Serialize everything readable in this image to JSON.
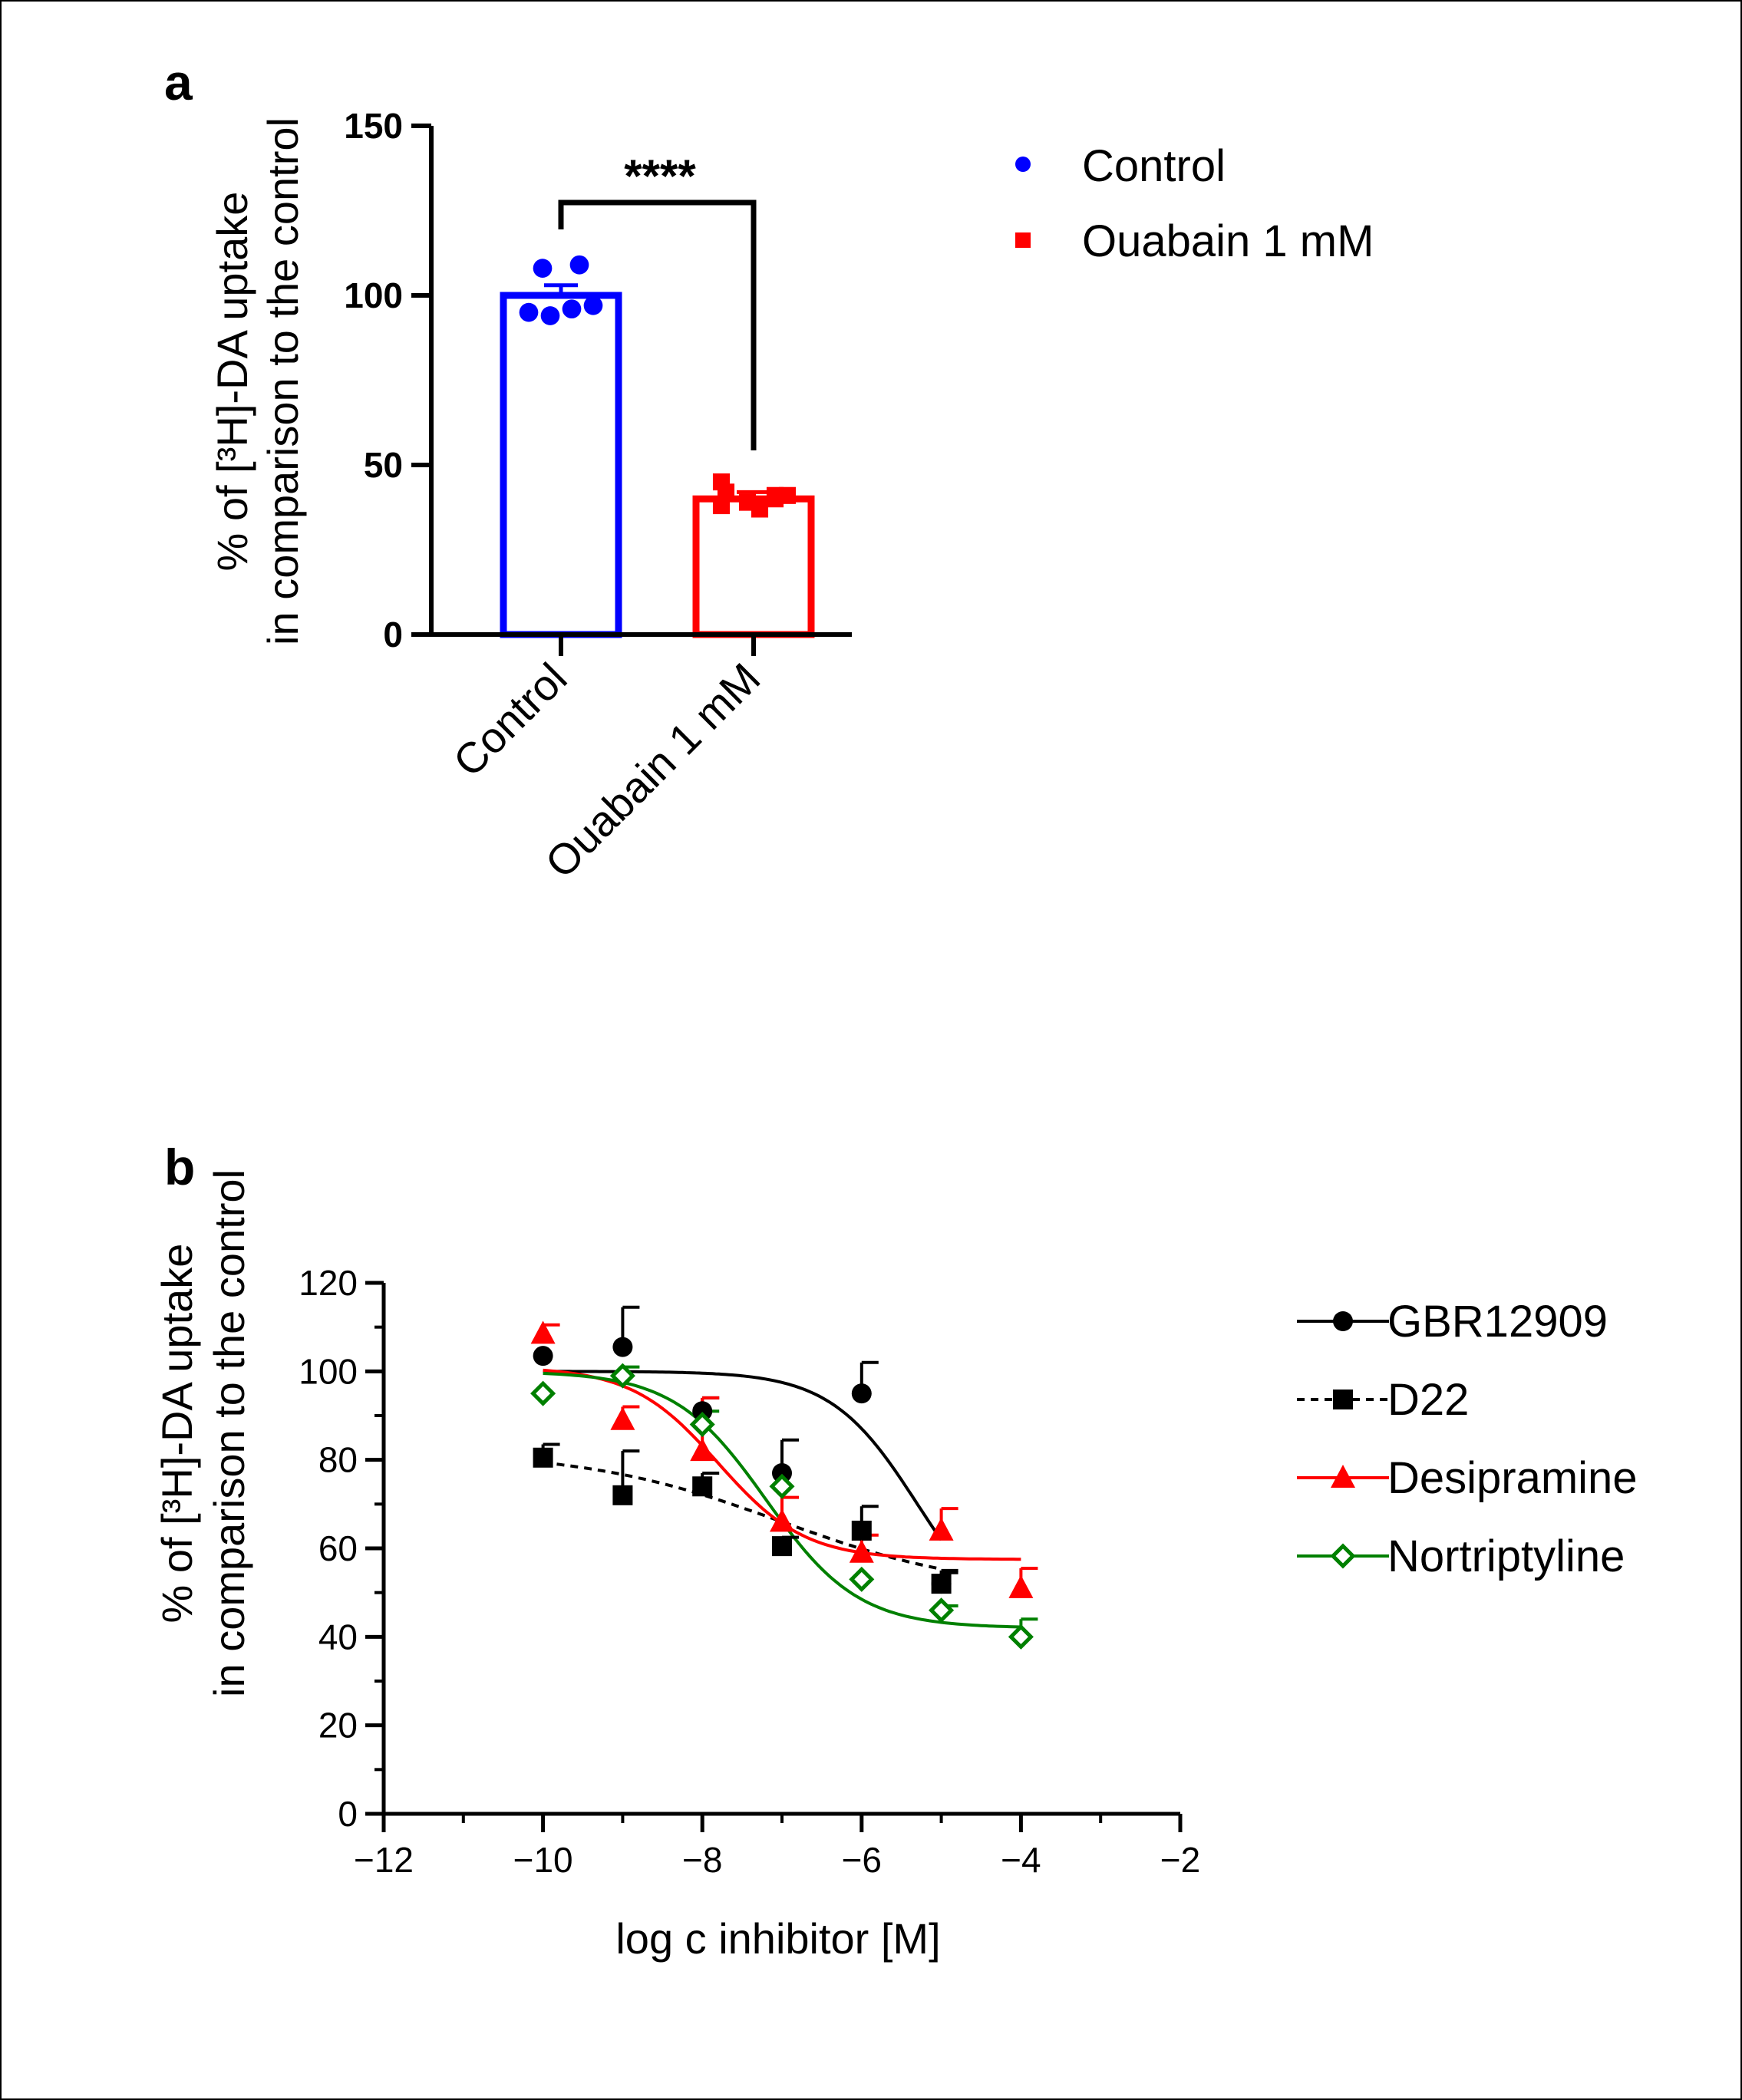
{
  "chart_data": [
    {
      "panel": "a",
      "type": "bar",
      "categories": [
        "Control",
        "Ouabain 1 mM"
      ],
      "values": [
        100,
        40
      ],
      "errors": [
        3,
        2
      ],
      "colors": [
        "#0000ff",
        "#ff0000"
      ],
      "points": [
        [
          108,
          109,
          95,
          94,
          96,
          97
        ],
        [
          45,
          42,
          38,
          39,
          37,
          40,
          41,
          41
        ]
      ],
      "ylabel_line1": "% of [³H]-DA uptake",
      "ylabel_line2": "in comparison to the control",
      "ylim": [
        0,
        150
      ],
      "yticks": [
        "0",
        "50",
        "100",
        "150"
      ],
      "significance": "****",
      "legend": [
        {
          "label": "Control",
          "marker": "circle",
          "color": "#0000ff"
        },
        {
          "label": "Ouabain 1 mM",
          "marker": "square",
          "color": "#ff0000"
        }
      ]
    },
    {
      "panel": "b",
      "type": "scatter",
      "xlabel": "log c inhibitor [M]",
      "ylabel_line1": "% of [³H]-DA uptake",
      "ylabel_line2": "in comparison to the control",
      "xlim": [
        -12,
        -2
      ],
      "ylim": [
        0,
        120
      ],
      "xticks": [
        "−12",
        "−10",
        "−8",
        "−6",
        "−4",
        "−2"
      ],
      "yticks": [
        "0",
        "20",
        "40",
        "60",
        "80",
        "100",
        "120"
      ],
      "series": [
        {
          "name": "GBR12909",
          "marker": "circle",
          "color": "#000000",
          "dashed": false,
          "x": [
            -10,
            -9,
            -8,
            -7,
            -6,
            -5
          ],
          "y": [
            103.5,
            105.5,
            91,
            77,
            95,
            52
          ],
          "err": [
            0,
            9,
            3,
            7.5,
            7,
            3
          ],
          "fit": {
            "top": 100,
            "bottom": 40,
            "logIC50": -5.3,
            "hill": 0.8
          }
        },
        {
          "name": "D22",
          "marker": "square",
          "color": "#000000",
          "dashed": true,
          "x": [
            -10,
            -9,
            -8,
            -7,
            -6,
            -5
          ],
          "y": [
            80.5,
            72,
            74,
            60.5,
            64,
            52
          ],
          "err": [
            3,
            10,
            3,
            2,
            5.5,
            2.5
          ],
          "fit": {
            "top": 82,
            "bottom": 50,
            "logIC50": -7.0,
            "hill": 0.35
          }
        },
        {
          "name": "Desipramine",
          "marker": "triangle",
          "color": "#ff0000",
          "dashed": false,
          "x": [
            -10,
            -9,
            -8,
            -7,
            -6,
            -5,
            -4
          ],
          "y": [
            108.5,
            89,
            82,
            66,
            59,
            64,
            51
          ],
          "err": [
            2,
            3,
            12,
            5.5,
            4,
            5,
            4.5
          ],
          "fit": {
            "top": 101,
            "bottom": 57.5,
            "logIC50": -7.8,
            "hill": 0.8
          }
        },
        {
          "name": "Nortriptyline",
          "marker": "diamond",
          "color": "#008000",
          "dashed": false,
          "x": [
            -10,
            -9,
            -8,
            -7,
            -6,
            -5,
            -4
          ],
          "y": [
            95,
            99,
            88,
            74,
            53,
            46,
            40
          ],
          "err": [
            0,
            2,
            3,
            0,
            0,
            1,
            4
          ],
          "fit": {
            "top": 100,
            "bottom": 42,
            "logIC50": -7.2,
            "hill": 0.75
          }
        }
      ]
    }
  ]
}
